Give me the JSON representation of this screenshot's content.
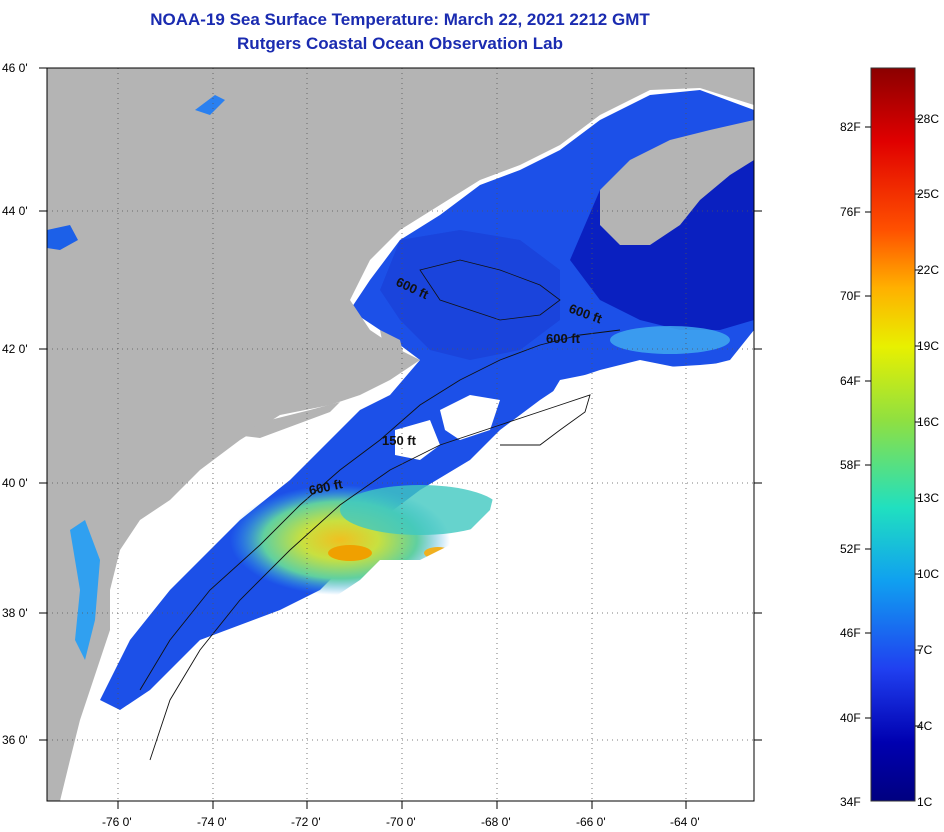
{
  "title": {
    "line1": "NOAA-19 Sea Surface Temperature:  March 22, 2021 2212 GMT",
    "line2": "Rutgers Coastal Ocean Observation Lab"
  },
  "map": {
    "lon_labels": [
      "-76 0'",
      "-74 0'",
      "-72 0'",
      "-70 0'",
      "-68 0'",
      "-66 0'",
      "-64 0'"
    ],
    "lat_labels": [
      "46 0'",
      "44 0'",
      "42 0'",
      "40 0'",
      "38 0'",
      "36 0'"
    ],
    "contour_labels": [
      "600 ft",
      "600 ft",
      "600 ft",
      "150 ft",
      "600 ft"
    ],
    "colors": {
      "land": "#b4b4b4",
      "cloud": "#ffffff",
      "frame": "#000000"
    }
  },
  "colorbar": {
    "fahrenheit_labels": [
      "82F",
      "76F",
      "70F",
      "64F",
      "58F",
      "52F",
      "46F",
      "40F",
      "34F"
    ],
    "celsius_labels": [
      "28C",
      "25C",
      "22C",
      "19C",
      "16C",
      "13C",
      "10C",
      "7C",
      "4C",
      "1C"
    ],
    "gradient_colors": [
      "#8b0000",
      "#e00000",
      "#ff5000",
      "#ffb000",
      "#e8f000",
      "#90e040",
      "#20e0c0",
      "#10a0f0",
      "#2040f0",
      "#0000b0",
      "#000080"
    ]
  }
}
